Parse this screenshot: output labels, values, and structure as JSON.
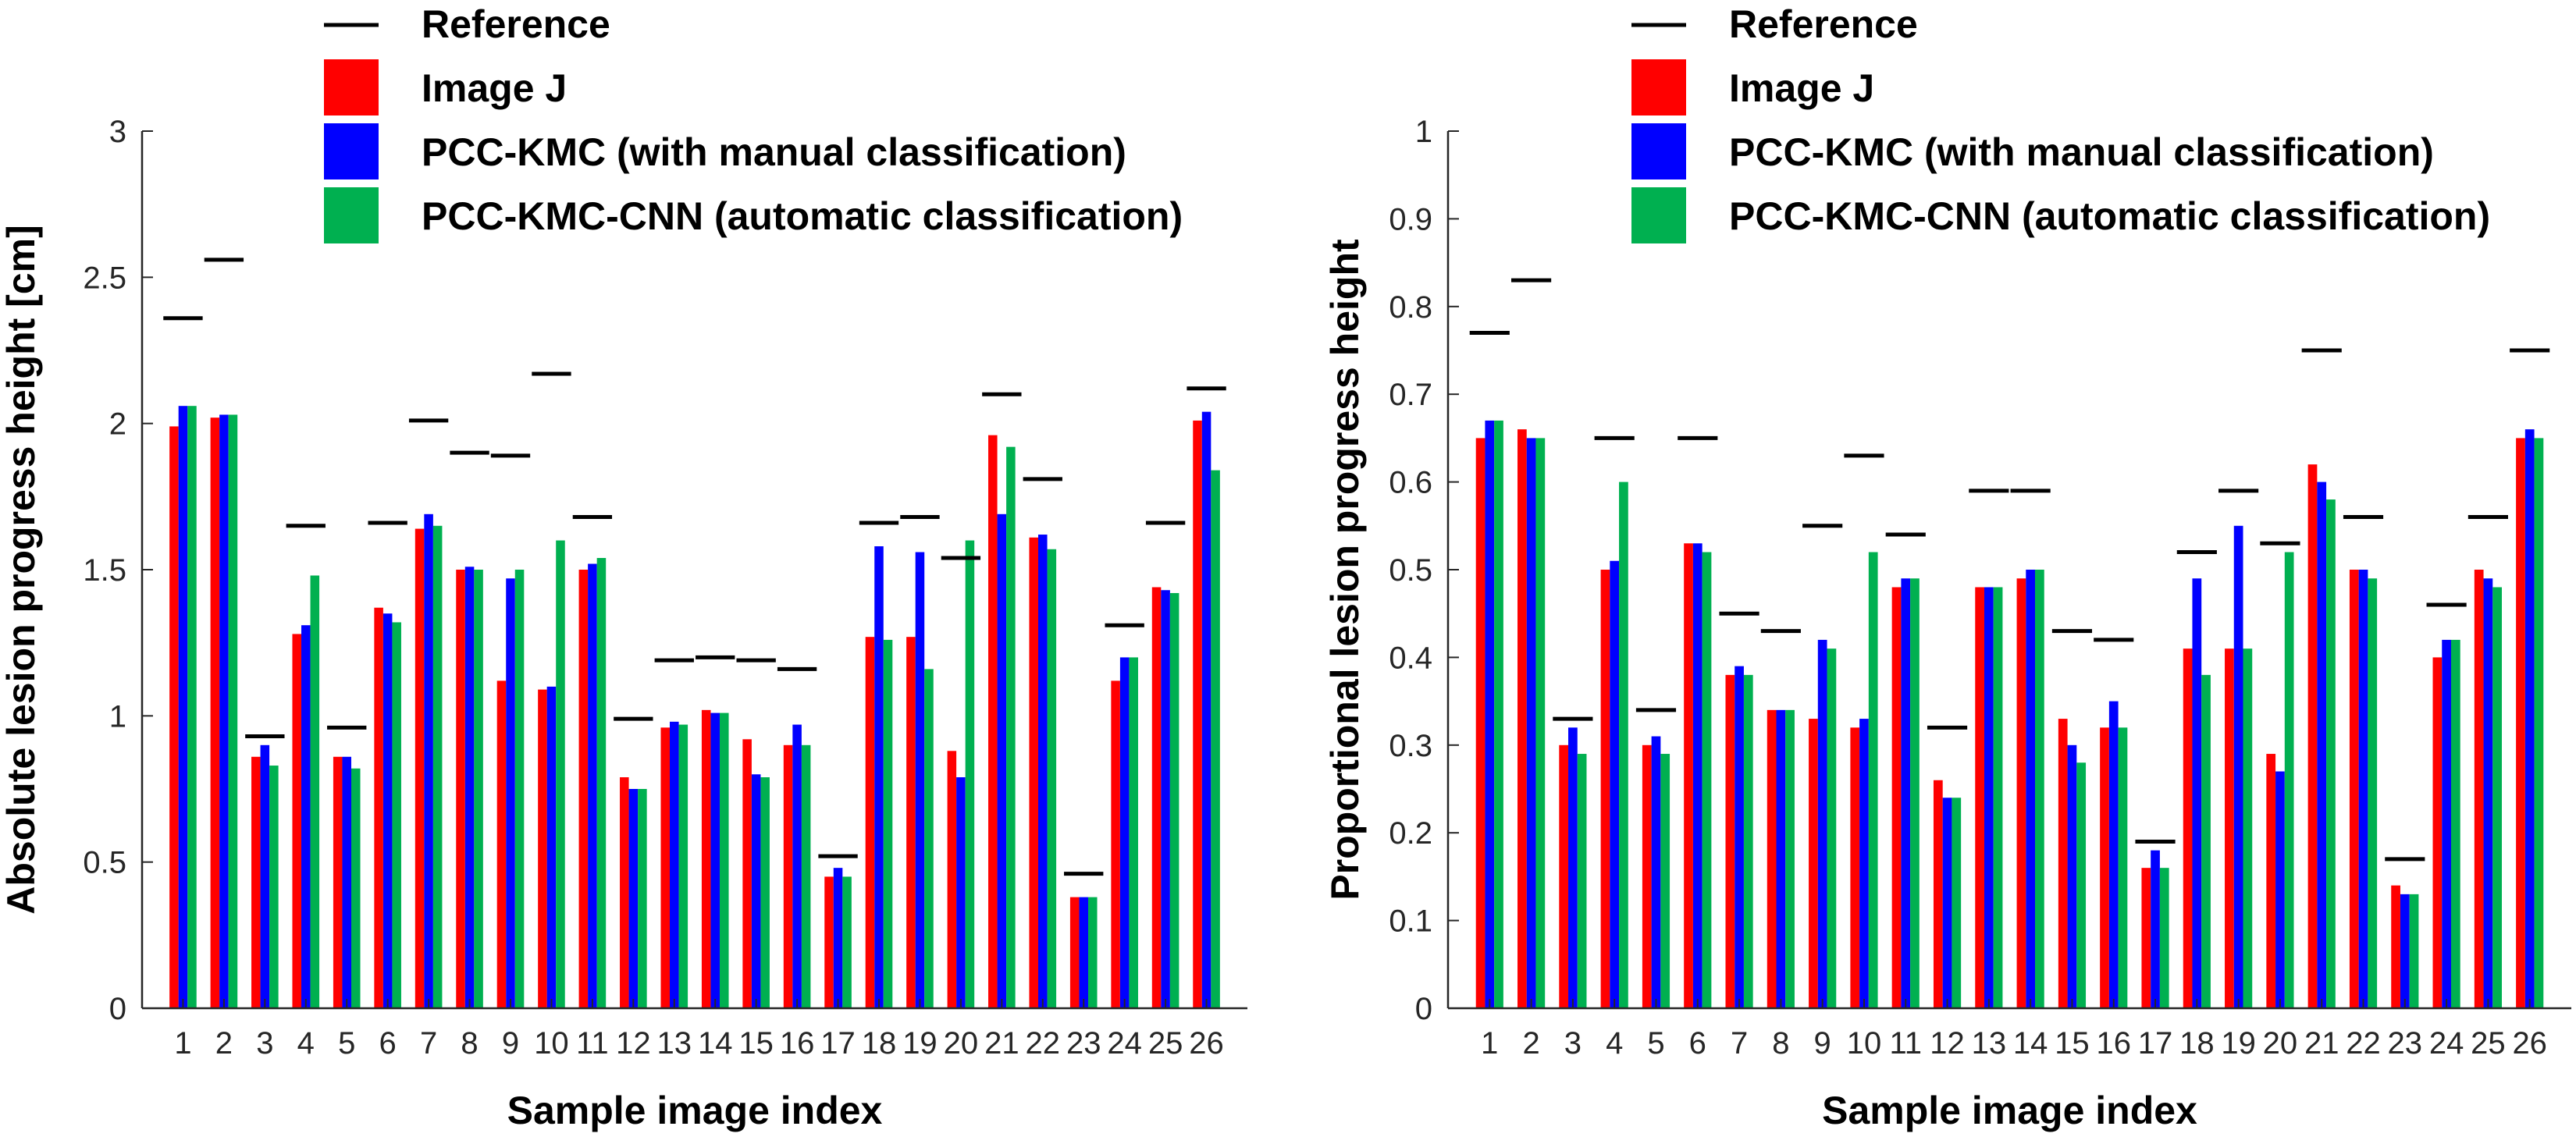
{
  "colors": {
    "reference": "#000000",
    "image_j": "#ff0000",
    "pcc_kmc": "#0000ff",
    "pcc_kmc_cnn": "#00b050",
    "axis": "#262626"
  },
  "chart_data": [
    {
      "type": "bar",
      "title": "",
      "xlabel": "Sample image index",
      "ylabel": "Absolute lesion progress height [cm]",
      "ylim": [
        0,
        3
      ],
      "yticks": [
        0,
        0.5,
        1,
        1.5,
        2,
        2.5,
        3
      ],
      "ytick_labels": [
        "0",
        "0.5",
        "1",
        "1.5",
        "2",
        "2.5",
        "3"
      ],
      "categories": [
        "1",
        "2",
        "3",
        "4",
        "5",
        "6",
        "7",
        "8",
        "9",
        "10",
        "11",
        "12",
        "13",
        "14",
        "15",
        "16",
        "17",
        "18",
        "19",
        "20",
        "21",
        "22",
        "23",
        "24",
        "25",
        "26"
      ],
      "legend": {
        "placement": "top-left",
        "entries": [
          {
            "name": "Reference",
            "marker": "line"
          },
          {
            "name": "Image J",
            "marker": "patch"
          },
          {
            "name": "PCC-KMC (with manual classification)",
            "marker": "patch"
          },
          {
            "name": "PCC-KMC-CNN (automatic classification)",
            "marker": "patch"
          }
        ]
      },
      "reference": [
        2.36,
        2.56,
        0.93,
        1.65,
        0.96,
        1.66,
        2.01,
        1.9,
        1.89,
        2.17,
        1.68,
        0.99,
        1.19,
        1.2,
        1.19,
        1.16,
        0.52,
        1.66,
        1.68,
        1.54,
        2.1,
        1.81,
        0.46,
        1.31,
        1.66,
        2.12
      ],
      "series": [
        {
          "name": "Image J",
          "values": [
            1.99,
            2.02,
            0.86,
            1.28,
            0.86,
            1.37,
            1.64,
            1.5,
            1.12,
            1.09,
            1.5,
            0.79,
            0.96,
            1.02,
            0.92,
            0.9,
            0.45,
            1.27,
            1.27,
            0.88,
            1.96,
            1.61,
            0.38,
            1.12,
            1.44,
            2.01
          ]
        },
        {
          "name": "PCC-KMC (with manual classification)",
          "values": [
            2.06,
            2.03,
            0.9,
            1.31,
            0.86,
            1.35,
            1.69,
            1.51,
            1.47,
            1.1,
            1.52,
            0.75,
            0.98,
            1.01,
            0.8,
            0.97,
            0.48,
            1.58,
            1.56,
            0.79,
            1.69,
            1.62,
            0.38,
            1.2,
            1.43,
            2.04
          ]
        },
        {
          "name": "PCC-KMC-CNN (automatic classification)",
          "values": [
            2.06,
            2.03,
            0.83,
            1.48,
            0.82,
            1.32,
            1.65,
            1.5,
            1.5,
            1.6,
            1.54,
            0.75,
            0.97,
            1.01,
            0.79,
            0.9,
            0.45,
            1.26,
            1.16,
            1.6,
            1.92,
            1.57,
            0.38,
            1.2,
            1.42,
            1.84
          ]
        }
      ]
    },
    {
      "type": "bar",
      "title": "",
      "xlabel": "Sample image index",
      "ylabel": "Proportional lesion progress height",
      "ylim": [
        0,
        1
      ],
      "yticks": [
        0,
        0.1,
        0.2,
        0.3,
        0.4,
        0.5,
        0.6,
        0.7,
        0.8,
        0.9,
        1
      ],
      "ytick_labels": [
        "0",
        "0.1",
        "0.2",
        "0.3",
        "0.4",
        "0.5",
        "0.6",
        "0.7",
        "0.8",
        "0.9",
        "1"
      ],
      "categories": [
        "1",
        "2",
        "3",
        "4",
        "5",
        "6",
        "7",
        "8",
        "9",
        "10",
        "11",
        "12",
        "13",
        "14",
        "15",
        "16",
        "17",
        "18",
        "19",
        "20",
        "21",
        "22",
        "23",
        "24",
        "25",
        "26"
      ],
      "legend": {
        "placement": "top-left",
        "entries": [
          {
            "name": "Reference",
            "marker": "line"
          },
          {
            "name": "Image J",
            "marker": "patch"
          },
          {
            "name": "PCC-KMC (with manual classification)",
            "marker": "patch"
          },
          {
            "name": "PCC-KMC-CNN (automatic classification)",
            "marker": "patch"
          }
        ]
      },
      "reference": [
        0.77,
        0.83,
        0.33,
        0.65,
        0.34,
        0.65,
        0.45,
        0.43,
        0.55,
        0.63,
        0.54,
        0.32,
        0.59,
        0.59,
        0.43,
        0.42,
        0.19,
        0.52,
        0.59,
        0.53,
        0.75,
        0.56,
        0.17,
        0.46,
        0.56,
        0.75
      ],
      "series": [
        {
          "name": "Image J",
          "values": [
            0.65,
            0.66,
            0.3,
            0.5,
            0.3,
            0.53,
            0.38,
            0.34,
            0.33,
            0.32,
            0.48,
            0.26,
            0.48,
            0.49,
            0.33,
            0.32,
            0.16,
            0.41,
            0.41,
            0.29,
            0.62,
            0.5,
            0.14,
            0.4,
            0.5,
            0.65
          ]
        },
        {
          "name": "PCC-KMC (with manual classification)",
          "values": [
            0.67,
            0.65,
            0.32,
            0.51,
            0.31,
            0.53,
            0.39,
            0.34,
            0.42,
            0.33,
            0.49,
            0.24,
            0.48,
            0.5,
            0.3,
            0.35,
            0.18,
            0.49,
            0.55,
            0.27,
            0.6,
            0.5,
            0.13,
            0.42,
            0.49,
            0.66
          ]
        },
        {
          "name": "PCC-KMC-CNN (automatic classification)",
          "values": [
            0.67,
            0.65,
            0.29,
            0.6,
            0.29,
            0.52,
            0.38,
            0.34,
            0.41,
            0.52,
            0.49,
            0.24,
            0.48,
            0.5,
            0.28,
            0.32,
            0.16,
            0.38,
            0.41,
            0.52,
            0.58,
            0.49,
            0.13,
            0.42,
            0.48,
            0.65
          ]
        }
      ]
    }
  ]
}
